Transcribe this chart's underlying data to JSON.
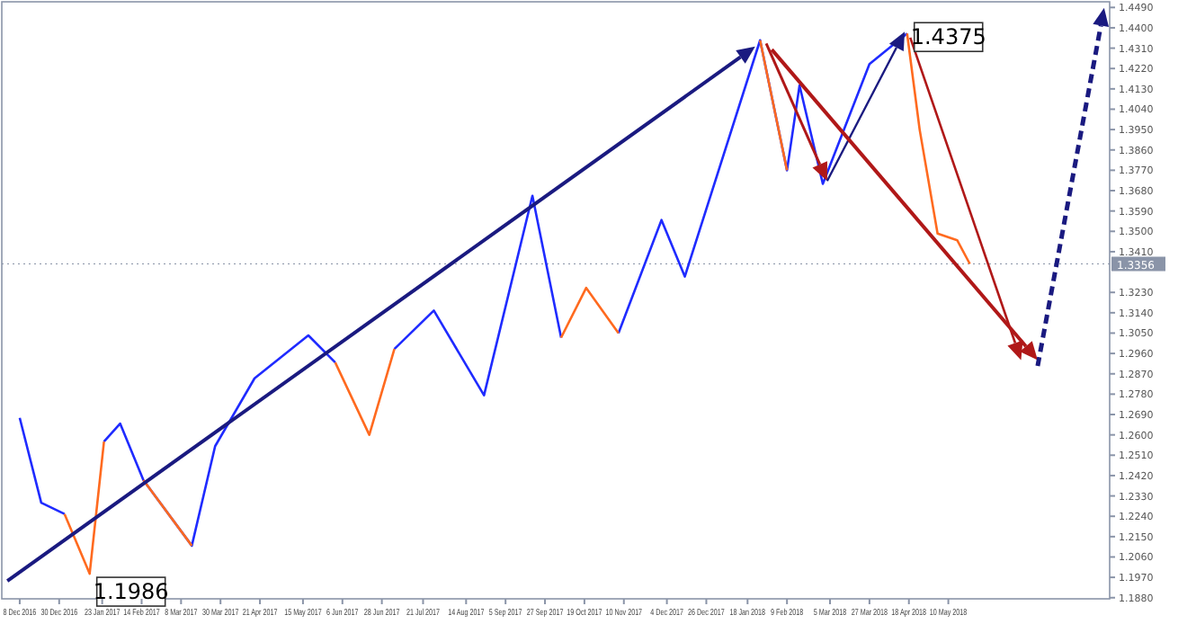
{
  "chart_data": {
    "type": "line",
    "x": [
      "2016-12-08",
      "2016-12-20",
      "2017-01-02",
      "2017-01-16",
      "2017-01-24",
      "2017-02-02",
      "2017-02-15",
      "2017-03-14",
      "2017-03-27",
      "2017-04-18",
      "2017-05-18",
      "2017-06-02",
      "2017-06-21",
      "2017-07-05",
      "2017-07-27",
      "2017-08-24",
      "2017-09-20",
      "2017-10-06",
      "2017-10-20",
      "2017-11-07",
      "2017-12-01",
      "2017-12-14",
      "2018-01-25",
      "2018-02-09",
      "2018-02-16",
      "2018-03-01",
      "2018-03-27",
      "2018-04-17",
      "2018-04-24",
      "2018-05-04",
      "2018-05-15",
      "2018-05-22"
    ],
    "series": [
      {
        "color": "#1f2bff",
        "values": [
          1.2675,
          1.23,
          1.225,
          null,
          1.257,
          1.265,
          1.24,
          1.211,
          1.255,
          1.285,
          1.304,
          1.292,
          null,
          1.298,
          1.315,
          1.2775,
          1.3657,
          1.303,
          null,
          1.305,
          1.355,
          1.33,
          1.4345,
          1.377,
          1.4145,
          1.371,
          1.424,
          1.4375,
          null,
          null,
          null,
          null
        ]
      },
      {
        "color": "#ff6a1f",
        "values": [
          null,
          null,
          1.225,
          1.1986,
          1.257,
          null,
          1.24,
          1.211,
          null,
          null,
          null,
          1.292,
          1.26,
          1.298,
          null,
          null,
          null,
          1.303,
          1.325,
          1.305,
          null,
          null,
          1.4345,
          1.377,
          null,
          null,
          null,
          1.4375,
          1.395,
          1.349,
          1.346,
          1.3356
        ]
      }
    ],
    "xlim": [
      "2016-11-28",
      "2018-08-08"
    ],
    "xticks": [
      {
        "value": "2016-12-08",
        "label": "8 Dec 2016"
      },
      {
        "value": "2016-12-30",
        "label": "30 Dec 2016"
      },
      {
        "value": "2017-01-23",
        "label": "23 Jan 2017"
      },
      {
        "value": "2017-02-14",
        "label": "14 Feb 2017"
      },
      {
        "value": "2017-03-08",
        "label": "8 Mar 2017"
      },
      {
        "value": "2017-03-30",
        "label": "30 Mar 2017"
      },
      {
        "value": "2017-04-21",
        "label": "21 Apr 2017"
      },
      {
        "value": "2017-05-15",
        "label": "15 May 2017"
      },
      {
        "value": "2017-06-06",
        "label": "6 Jun 2017"
      },
      {
        "value": "2017-06-28",
        "label": "28 Jun 2017"
      },
      {
        "value": "2017-07-21",
        "label": "21 Jul 2017"
      },
      {
        "value": "2017-08-14",
        "label": "14 Aug 2017"
      },
      {
        "value": "2017-09-05",
        "label": "5 Sep 2017"
      },
      {
        "value": "2017-09-27",
        "label": "27 Sep 2017"
      },
      {
        "value": "2017-10-19",
        "label": "19 Oct 2017"
      },
      {
        "value": "2017-11-10",
        "label": "10 Nov 2017"
      },
      {
        "value": "2017-12-04",
        "label": "4 Dec 2017"
      },
      {
        "value": "2017-12-26",
        "label": "26 Dec 2017"
      },
      {
        "value": "2018-01-18",
        "label": "18 Jan 2018"
      },
      {
        "value": "2018-02-09",
        "label": "9 Feb 2018"
      },
      {
        "value": "2018-03-05",
        "label": "5 Mar 2018"
      },
      {
        "value": "2018-03-27",
        "label": "27 Mar 2018"
      },
      {
        "value": "2018-04-18",
        "label": "18 Apr 2018"
      },
      {
        "value": "2018-05-10",
        "label": "10 May 2018"
      }
    ],
    "ylim": [
      1.1875,
      1.4515
    ],
    "yticks": [
      {
        "value": 1.449,
        "label": "1.4490"
      },
      {
        "value": 1.44,
        "label": "1.4400"
      },
      {
        "value": 1.431,
        "label": "1.4310"
      },
      {
        "value": 1.422,
        "label": "1.4220"
      },
      {
        "value": 1.413,
        "label": "1.4130"
      },
      {
        "value": 1.404,
        "label": "1.4040"
      },
      {
        "value": 1.395,
        "label": "1.3950"
      },
      {
        "value": 1.386,
        "label": "1.3860"
      },
      {
        "value": 1.377,
        "label": "1.3770"
      },
      {
        "value": 1.368,
        "label": "1.3680"
      },
      {
        "value": 1.359,
        "label": "1.3590"
      },
      {
        "value": 1.35,
        "label": "1.3500"
      },
      {
        "value": 1.341,
        "label": "1.3410"
      },
      {
        "value": 1.323,
        "label": "1.3230"
      },
      {
        "value": 1.314,
        "label": "1.3140"
      },
      {
        "value": 1.305,
        "label": "1.3050"
      },
      {
        "value": 1.296,
        "label": "1.2960"
      },
      {
        "value": 1.287,
        "label": "1.2870"
      },
      {
        "value": 1.278,
        "label": "1.2780"
      },
      {
        "value": 1.269,
        "label": "1.2690"
      },
      {
        "value": 1.26,
        "label": "1.2600"
      },
      {
        "value": 1.251,
        "label": "1.2510"
      },
      {
        "value": 1.242,
        "label": "1.2420"
      },
      {
        "value": 1.233,
        "label": "1.2330"
      },
      {
        "value": 1.224,
        "label": "1.2240"
      },
      {
        "value": 1.215,
        "label": "1.2150"
      },
      {
        "value": 1.206,
        "label": "1.2060"
      },
      {
        "value": 1.197,
        "label": "1.1970"
      },
      {
        "value": 1.188,
        "label": "1.1880"
      }
    ],
    "ref_lines": [
      {
        "axis": "y",
        "value": 1.3356,
        "label": "1.3356",
        "color": "#8a94a8"
      }
    ],
    "annotations": [
      {
        "text": "1.1986",
        "x": "2017-01-16",
        "y": 1.1986
      },
      {
        "text": "1.4375",
        "x": "2018-04-17",
        "y": 1.4375
      }
    ],
    "grid": false,
    "marker": "none",
    "line_style": "solid"
  }
}
